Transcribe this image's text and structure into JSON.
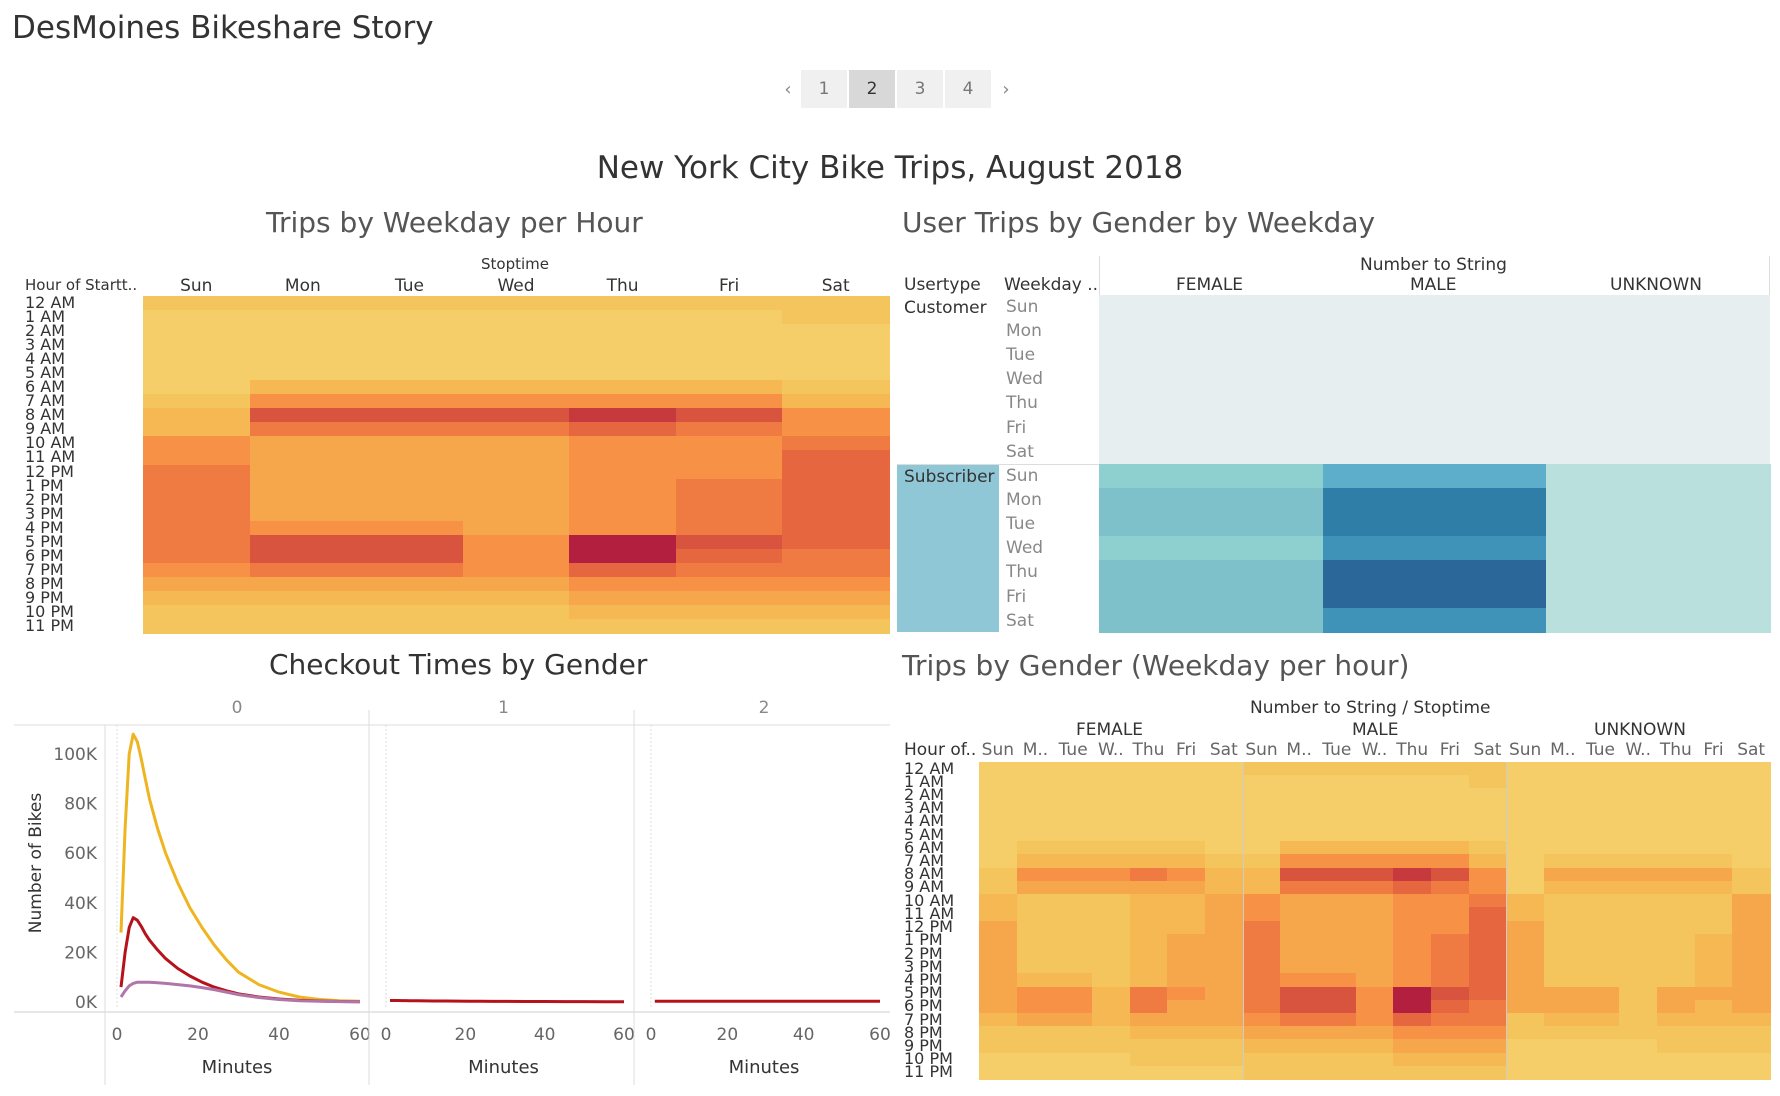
{
  "story_title": "DesMoines Bikeshare Story",
  "pager": {
    "prev": "‹",
    "next": "›",
    "pages": [
      "1",
      "2",
      "3",
      "4"
    ],
    "active": 1
  },
  "dashboard_title": "New York City Bike Trips, August 2018",
  "hours": [
    "12 AM",
    "1 AM",
    "2 AM",
    "3 AM",
    "4 AM",
    "5 AM",
    "6 AM",
    "7 AM",
    "8 AM",
    "9 AM",
    "10 AM",
    "11 AM",
    "12 PM",
    "1 PM",
    "2 PM",
    "3 PM",
    "4 PM",
    "5 PM",
    "6 PM",
    "7 PM",
    "8 PM",
    "9 PM",
    "10 PM",
    "11 PM"
  ],
  "days": [
    "Sun",
    "Mon",
    "Tue",
    "Wed",
    "Thu",
    "Fri",
    "Sat"
  ],
  "days_abbrev": [
    "Sun",
    "M..",
    "Tue",
    "W..",
    "Thu",
    "Fri",
    "Sat"
  ],
  "ws1": {
    "title": "Trips by Weekday per Hour",
    "row_header": "Hour of Startt..",
    "col_header": "Stoptime",
    "levels": [
      [
        2,
        2,
        2,
        2,
        2,
        2,
        2
      ],
      [
        1,
        1,
        1,
        1,
        1,
        1,
        2
      ],
      [
        1,
        1,
        1,
        1,
        1,
        1,
        1
      ],
      [
        1,
        1,
        1,
        1,
        1,
        1,
        1
      ],
      [
        1,
        1,
        1,
        1,
        1,
        1,
        1
      ],
      [
        1,
        1,
        1,
        1,
        1,
        1,
        1
      ],
      [
        1,
        3,
        3,
        3,
        3,
        3,
        2
      ],
      [
        2,
        5,
        5,
        5,
        5,
        5,
        3
      ],
      [
        3,
        8,
        8,
        8,
        9,
        8,
        5
      ],
      [
        3,
        6,
        6,
        6,
        7,
        6,
        5
      ],
      [
        5,
        4,
        4,
        4,
        5,
        5,
        6
      ],
      [
        5,
        4,
        4,
        4,
        5,
        5,
        7
      ],
      [
        6,
        4,
        4,
        4,
        5,
        5,
        7
      ],
      [
        6,
        4,
        4,
        4,
        5,
        6,
        7
      ],
      [
        6,
        4,
        4,
        4,
        5,
        6,
        7
      ],
      [
        6,
        4,
        4,
        4,
        5,
        6,
        7
      ],
      [
        6,
        5,
        5,
        4,
        5,
        6,
        7
      ],
      [
        6,
        8,
        8,
        5,
        10,
        8,
        7
      ],
      [
        6,
        8,
        8,
        5,
        10,
        7,
        6
      ],
      [
        5,
        6,
        6,
        5,
        7,
        6,
        6
      ],
      [
        4,
        4,
        4,
        4,
        5,
        5,
        5
      ],
      [
        3,
        3,
        3,
        3,
        4,
        4,
        4
      ],
      [
        2,
        2,
        2,
        2,
        3,
        3,
        3
      ],
      [
        2,
        2,
        2,
        2,
        2,
        2,
        2
      ]
    ]
  },
  "ws2": {
    "title": "User Trips by Gender by Weekday",
    "col_header": "Number to String",
    "row_header_1": "Usertype",
    "row_header_2": "Weekday ..",
    "genders": [
      "FEMALE",
      "MALE",
      "UNKNOWN"
    ],
    "usertypes": [
      "Customer",
      "Subscriber"
    ],
    "subscriber_levels": [
      [
        3,
        5,
        1
      ],
      [
        4,
        7,
        1
      ],
      [
        4,
        7,
        1
      ],
      [
        3,
        6,
        1
      ],
      [
        4,
        8,
        1
      ],
      [
        4,
        8,
        1
      ],
      [
        4,
        6,
        1
      ]
    ]
  },
  "ws3": {
    "title": "Checkout Times by Gender",
    "panels": [
      "0",
      "1",
      "2"
    ],
    "y_label": "Number of Bikes",
    "x_label": "Minutes",
    "x_ticks": [
      "0",
      "20",
      "40",
      "60"
    ],
    "y_ticks": [
      "0K",
      "20K",
      "40K",
      "60K",
      "80K",
      "100K"
    ],
    "colors": {
      "male": "#eeb521",
      "female": "#b5121b",
      "unknown": "#b175a8"
    }
  },
  "chart_data": {
    "type": "line",
    "title": "Checkout Times by Gender",
    "xlabel": "Minutes",
    "ylabel": "Number of Bikes",
    "ylim": [
      0,
      110000
    ],
    "xlim": [
      0,
      60
    ],
    "x": [
      1,
      2,
      3,
      4,
      5,
      6,
      7,
      8,
      10,
      12,
      15,
      18,
      21,
      24,
      27,
      30,
      35,
      40,
      45,
      50,
      55,
      60
    ],
    "series": [
      {
        "panel": "0",
        "color": "#eeb521",
        "values": [
          28000,
          70000,
          100000,
          108000,
          105000,
          98000,
          90000,
          82000,
          70000,
          60000,
          48000,
          38000,
          30000,
          23000,
          17000,
          12000,
          7000,
          4000,
          2000,
          1000,
          500,
          300
        ]
      },
      {
        "panel": "0",
        "color": "#b5121b",
        "values": [
          6000,
          20000,
          30000,
          34000,
          33000,
          30500,
          27500,
          25000,
          21000,
          17500,
          13500,
          10500,
          8000,
          6000,
          4500,
          3300,
          2000,
          1200,
          700,
          400,
          200,
          100
        ]
      },
      {
        "panel": "0",
        "color": "#b175a8",
        "values": [
          2000,
          4500,
          6500,
          7500,
          8000,
          8000,
          8000,
          8000,
          7800,
          7500,
          7000,
          6500,
          5800,
          5000,
          4000,
          3000,
          1800,
          1000,
          500,
          300,
          150,
          80
        ]
      },
      {
        "panel": "1",
        "color": "#b5121b",
        "values": [
          600,
          600,
          600,
          550,
          550,
          500,
          500,
          500,
          450,
          400,
          400,
          350,
          300,
          300,
          250,
          250,
          200,
          200,
          150,
          150,
          100,
          100
        ]
      },
      {
        "panel": "2",
        "color": "#b5121b",
        "values": [
          300,
          300,
          300,
          300,
          300,
          300,
          300,
          300,
          300,
          300,
          300,
          300,
          300,
          300,
          300,
          300,
          300,
          300,
          300,
          300,
          300,
          300
        ]
      }
    ]
  },
  "ws4": {
    "title": "Trips by Gender (Weekday per hour)",
    "col_header": "Number to String / Stoptime",
    "row_header": "Hour of..",
    "genders": [
      "FEMALE",
      "MALE",
      "UNKNOWN"
    ]
  },
  "palette_heat": [
    "#f7d478",
    "#f5cd69",
    "#f5c55d",
    "#f6b853",
    "#f7a74b",
    "#f69145",
    "#ef7b42",
    "#e5663f",
    "#d9543f",
    "#c63a3e",
    "#b31f3f"
  ],
  "palette_blue": [
    "#e6eef0",
    "#b9e0dc",
    "#a4d8d4",
    "#8ecfd0",
    "#7fc1cb",
    "#5daeca",
    "#3f92b8",
    "#2f7ea8",
    "#2b6798",
    "#295587"
  ]
}
